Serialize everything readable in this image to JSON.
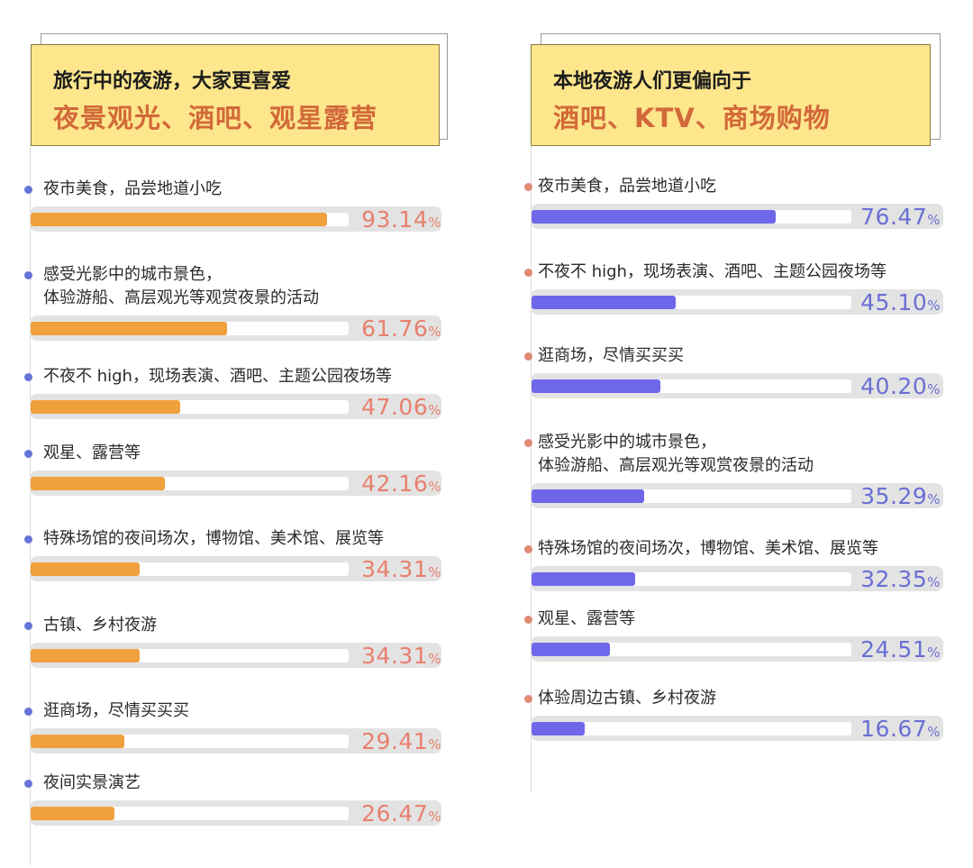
{
  "colors": {
    "header_bg": "#fde68c",
    "header_accent": "#d2693a",
    "left_bar": "#f0a03c",
    "left_dot": "#6673d8",
    "left_pct": "#e8806e",
    "right_bar": "#6f67ea",
    "right_dot": "#e08a72",
    "right_pct": "#6a70d4",
    "track": "#ffffff",
    "pill": "#e3e3e3"
  },
  "chart_data": [
    {
      "type": "bar",
      "orientation": "horizontal",
      "title": "旅行中的夜游，大家更喜爱",
      "subtitle": "夜景观光、酒吧、观星露营",
      "xlim": [
        0,
        100
      ],
      "unit": "%",
      "categories": [
        "夜市美食，品尝地道小吃",
        "感受光影中的城市景色，\n体验游船、高层观光等观赏夜景的活动",
        "不夜不 high，现场表演、酒吧、主题公园夜场等",
        "观星、露营等",
        "特殊场馆的夜间场次，博物馆、美术馆、展览等",
        "古镇、乡村夜游",
        "逛商场，尽情买买买",
        "夜间实景演艺"
      ],
      "values": [
        93.14,
        61.76,
        47.06,
        42.16,
        34.31,
        34.31,
        29.41,
        26.47
      ],
      "labels": [
        "93.14",
        "61.76",
        "47.06",
        "42.16",
        "34.31",
        "34.31",
        "29.41",
        "26.47"
      ]
    },
    {
      "type": "bar",
      "orientation": "horizontal",
      "title": "本地夜游人们更偏向于",
      "subtitle": "酒吧、KTV、商场购物",
      "xlim": [
        0,
        100
      ],
      "unit": "%",
      "categories": [
        "夜市美食，品尝地道小吃",
        "不夜不 high，现场表演、酒吧、主题公园夜场等",
        "逛商场，尽情买买买",
        "感受光影中的城市景色，\n体验游船、高层观光等观赏夜景的活动",
        "特殊场馆的夜间场次，博物馆、美术馆、展览等",
        "观星、露营等",
        "体验周边古镇、乡村夜游"
      ],
      "values": [
        76.47,
        45.1,
        40.2,
        35.29,
        32.35,
        24.51,
        16.67
      ],
      "labels": [
        "76.47",
        "45.10",
        "40.20",
        "35.29",
        "32.35",
        "24.51",
        "16.67"
      ]
    }
  ]
}
